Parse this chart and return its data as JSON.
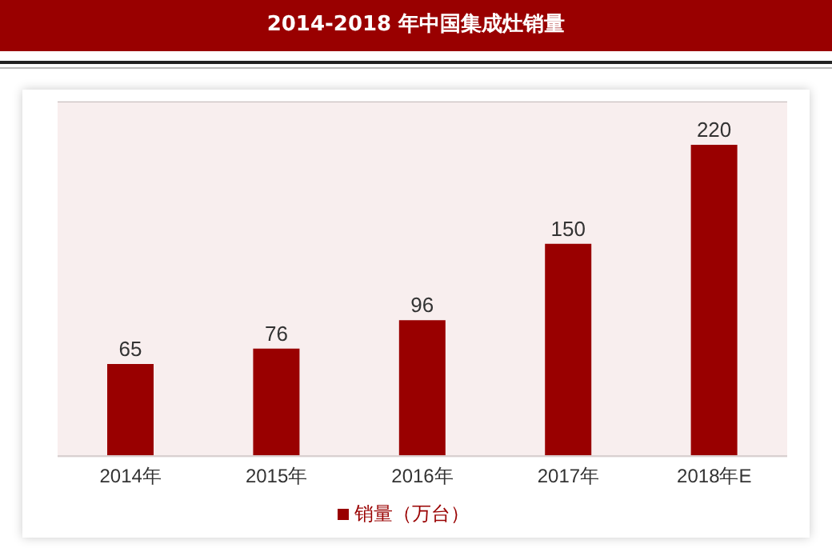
{
  "chart_data": {
    "type": "bar",
    "title": "2014-2018 年中国集成灶销量",
    "categories": [
      "2014年",
      "2015年",
      "2016年",
      "2017年",
      "2018年E"
    ],
    "series": [
      {
        "name": "销量（万台）",
        "color": "#990000",
        "values": [
          65,
          76,
          96,
          150,
          220
        ]
      }
    ],
    "ylim": [
      0,
      250
    ],
    "tick_labels": "x",
    "grid": "y",
    "legend": "bottom",
    "data_labels": true
  }
}
